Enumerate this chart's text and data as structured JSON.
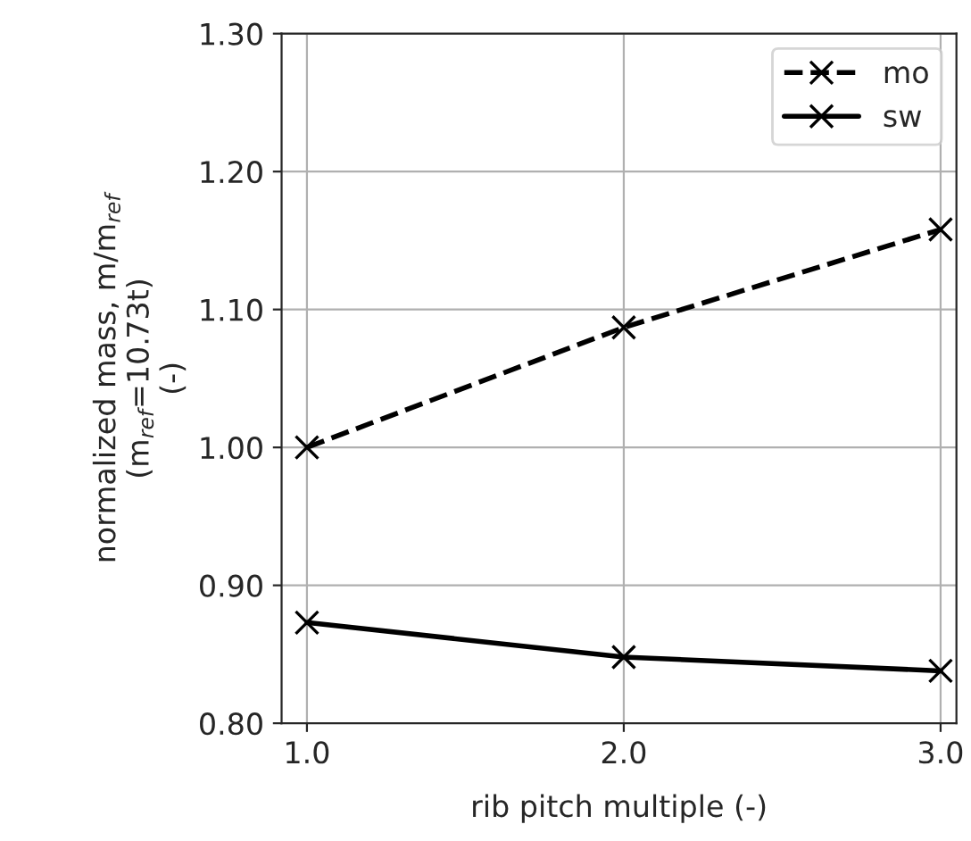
{
  "chart_data": {
    "type": "line",
    "xlabel": "rib pitch multiple (-)",
    "ylabel": "normalized mass, m/m$_{ref}$\n(m$_{ref}$=10.73t)\n(-)",
    "x": [
      1.0,
      2.0,
      3.0
    ],
    "series": [
      {
        "name": "mo",
        "color": "#000000",
        "line_style": "dashed",
        "values": [
          1.0,
          1.087,
          1.158
        ]
      },
      {
        "name": "sw",
        "color": "#000000",
        "line_style": "solid",
        "values": [
          0.873,
          0.848,
          0.838
        ]
      }
    ],
    "marker": "cross",
    "xlim": [
      0.92,
      3.05
    ],
    "ylim": [
      0.8,
      1.3
    ],
    "xticks": [
      {
        "value": 1.0,
        "label": "1.0"
      },
      {
        "value": 2.0,
        "label": "2.0"
      },
      {
        "value": 3.0,
        "label": "3.0"
      }
    ],
    "yticks": [
      {
        "value": 0.8,
        "label": "0.80"
      },
      {
        "value": 0.9,
        "label": "0.90"
      },
      {
        "value": 1.0,
        "label": "1.00"
      },
      {
        "value": 1.1,
        "label": "1.10"
      },
      {
        "value": 1.2,
        "label": "1.20"
      },
      {
        "value": 1.3,
        "label": "1.30"
      }
    ],
    "grid": true,
    "legend": "top right"
  }
}
